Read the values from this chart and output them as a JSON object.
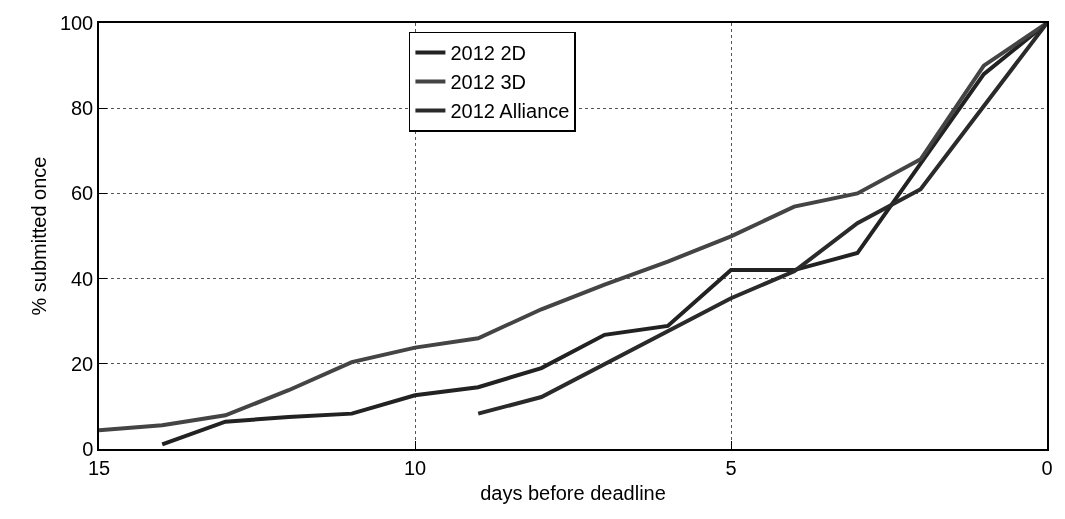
{
  "chart_data": {
    "type": "line",
    "xlabel": "days before deadline",
    "ylabel": "% submitted once",
    "xlim": [
      15,
      0
    ],
    "ylim": [
      0,
      100
    ],
    "xticks": [
      15,
      10,
      5,
      0
    ],
    "yticks": [
      0,
      20,
      40,
      60,
      80,
      100
    ],
    "grid": true,
    "legend": "top",
    "line_style": "solid",
    "series": [
      {
        "name": "2012 2D",
        "color": "#222222",
        "x": [
          14,
          13,
          12,
          11,
          10,
          9,
          8,
          7,
          6,
          5,
          4,
          3,
          1,
          0
        ],
        "values": [
          1.1,
          6.4,
          7.5,
          8.3,
          12.6,
          14.5,
          19,
          26.8,
          28.9,
          42,
          42,
          46,
          88,
          100
        ]
      },
      {
        "name": "2012 3D",
        "color": "#444444",
        "x": [
          15,
          14,
          13,
          12,
          11,
          10,
          9,
          8,
          7,
          6,
          5,
          4,
          3,
          2,
          1,
          0
        ],
        "values": [
          4.4,
          5.6,
          7.9,
          13.8,
          20.4,
          23.8,
          26,
          32.8,
          38.6,
          44,
          49.9,
          56.9,
          60,
          68,
          90,
          100
        ]
      },
      {
        "name": "2012 Alliance",
        "color": "#2a2a2a",
        "x": [
          9,
          8,
          5,
          4,
          3,
          2,
          0
        ],
        "values": [
          8.3,
          12.2,
          35.4,
          41.7,
          53,
          61,
          100
        ]
      }
    ]
  }
}
